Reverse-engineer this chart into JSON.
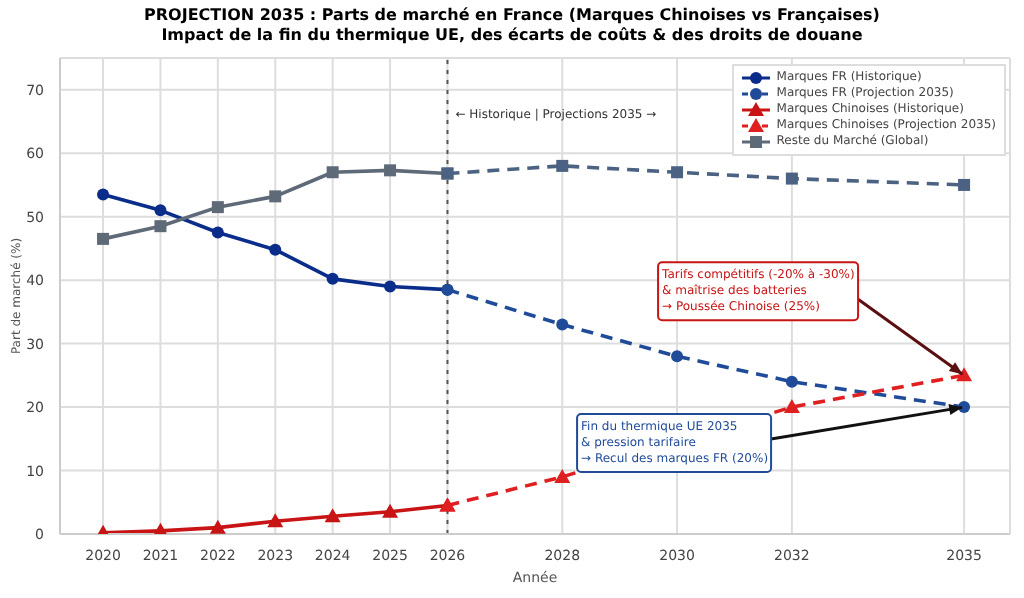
{
  "chart_data": {
    "type": "line",
    "title": "PROJECTION 2035 : Parts de marché en France (Marques Chinoises vs Françaises)",
    "subtitle": "Impact de la fin du thermique UE, des écarts de coûts & des droits de douane",
    "xlabel": "Année",
    "ylabel": "Part de marché (%)",
    "xlim": [
      2019.25,
      2035.8
    ],
    "xticks": [
      2020,
      2021,
      2022,
      2023,
      2024,
      2025,
      2026,
      2028,
      2030,
      2032,
      2035
    ],
    "ylim": [
      0,
      75
    ],
    "yticks": [
      0,
      10,
      20,
      30,
      40,
      50,
      60,
      70
    ],
    "grid": true,
    "legend": "top right",
    "series": [
      {
        "name": "Marques FR (Historique)",
        "color": "#0a2d8c",
        "marker": "circle",
        "line_style": "solid",
        "x": [
          2020,
          2021,
          2022,
          2023,
          2024,
          2025,
          2026
        ],
        "values": [
          53.5,
          51,
          47.5,
          44.8,
          40.2,
          39,
          38.5
        ]
      },
      {
        "name": "Marques FR (Projection 2035)",
        "color": "#1f4b99",
        "marker": "circle",
        "line_style": "dashed",
        "x": [
          2026,
          2028,
          2030,
          2032,
          2035
        ],
        "values": [
          38.5,
          33,
          28,
          24,
          20
        ]
      },
      {
        "name": "Marques Chinoises (Historique)",
        "color": "#c81414",
        "marker": "triangle",
        "line_style": "solid",
        "x": [
          2020,
          2021,
          2022,
          2023,
          2024,
          2025,
          2026
        ],
        "values": [
          0.2,
          0.5,
          1,
          2,
          2.8,
          3.5,
          4.5
        ]
      },
      {
        "name": "Marques Chinoises (Projection 2035)",
        "color": "#e02020",
        "marker": "triangle",
        "line_style": "dashed",
        "x": [
          2026,
          2028,
          2030,
          2032,
          2035
        ],
        "values": [
          4.5,
          9,
          null,
          20,
          25
        ]
      },
      {
        "name": "Reste du Marché (Global)",
        "color": "#5e6a78",
        "marker": "square",
        "line_style": "solid",
        "x": [
          2020,
          2021,
          2022,
          2023,
          2024,
          2025,
          2026
        ],
        "values": [
          46.5,
          48.5,
          51.5,
          53.2,
          57,
          57.3,
          56.8
        ]
      },
      {
        "color": "#4b6282",
        "marker": "square",
        "line_style": "dashed",
        "x": [
          2026,
          2028,
          2030,
          2032,
          2035
        ],
        "values": [
          56.8,
          58,
          57,
          56,
          55
        ]
      }
    ],
    "ref_lines": [
      {
        "axis": "x",
        "value": 2026,
        "label": "← Historique | Projections 2035 →",
        "color": "#555555",
        "line_style": "dotted"
      }
    ],
    "annotations": [
      {
        "text": "Tarifs compétitifs (-20% à -30%)\n& maîtrise des batteries\n→ Poussée Chinoise (25%)",
        "x": 2035,
        "y": 25
      },
      {
        "text": "Fin du thermique UE 2035\n& pression tarifaire\n→ Recul des marques FR (20%)",
        "x": 2035,
        "y": 20
      }
    ]
  }
}
